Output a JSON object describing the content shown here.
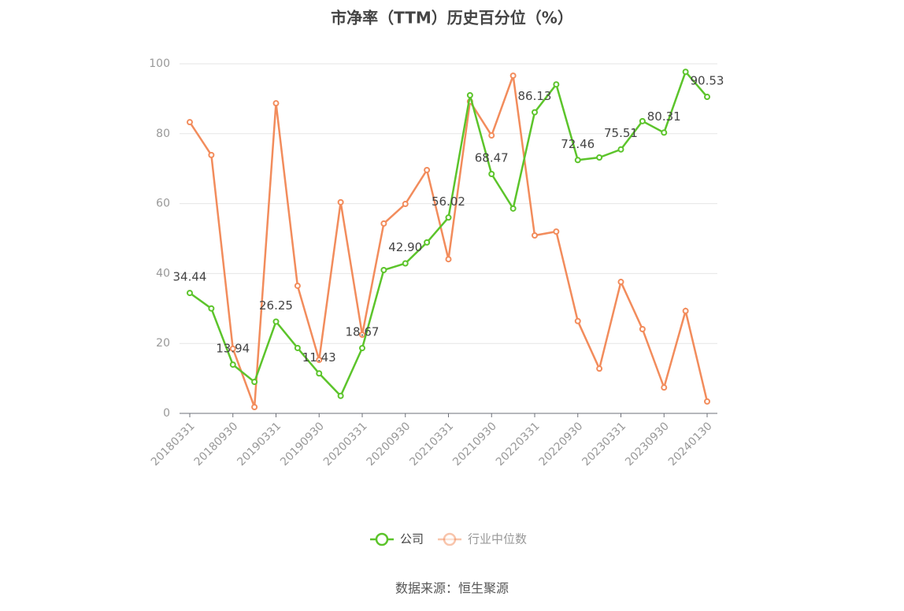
{
  "chart_data": {
    "type": "line",
    "title": "市净率（TTM）历史百分位（%）",
    "source": "数据来源：恒生聚源",
    "categories": [
      "20180331",
      null,
      "20180930",
      null,
      "20190331",
      null,
      "20190930",
      null,
      "20200331",
      null,
      "20200930",
      null,
      "20210331",
      null,
      "20210930",
      null,
      "20220331",
      null,
      "20220930",
      null,
      "20230331",
      null,
      "20230930",
      null,
      "20240130"
    ],
    "ylim": [
      0,
      100
    ],
    "yticks": [
      0,
      20,
      40,
      60,
      80,
      100
    ],
    "grid": true,
    "legend": "bottom",
    "series": [
      {
        "name": "公司",
        "color": "#5cc42b",
        "values": [
          34.44,
          30.0,
          13.94,
          9.0,
          26.25,
          18.7,
          11.43,
          5.0,
          18.67,
          41.0,
          42.9,
          48.9,
          56.02,
          91.0,
          68.47,
          58.6,
          86.13,
          94.1,
          72.46,
          73.2,
          75.51,
          83.6,
          80.31,
          97.7,
          90.53
        ],
        "value_labels": [
          "34.44",
          null,
          "13.94",
          null,
          "26.25",
          null,
          "11.43",
          null,
          "18.67",
          null,
          "42.90",
          null,
          "56.02",
          null,
          "68.47",
          null,
          "86.13",
          null,
          "72.46",
          null,
          "75.51",
          null,
          "80.31",
          null,
          "90.53"
        ]
      },
      {
        "name": "行业中位数",
        "color": "#f28c5c",
        "values": [
          83.3,
          73.9,
          18.5,
          1.8,
          88.7,
          36.5,
          15.3,
          60.4,
          22.5,
          54.3,
          59.9,
          69.6,
          44.1,
          89.2,
          79.5,
          96.6,
          50.9,
          52.0,
          26.4,
          12.8,
          37.6,
          24.1,
          7.4,
          29.3,
          3.4
        ]
      }
    ]
  }
}
